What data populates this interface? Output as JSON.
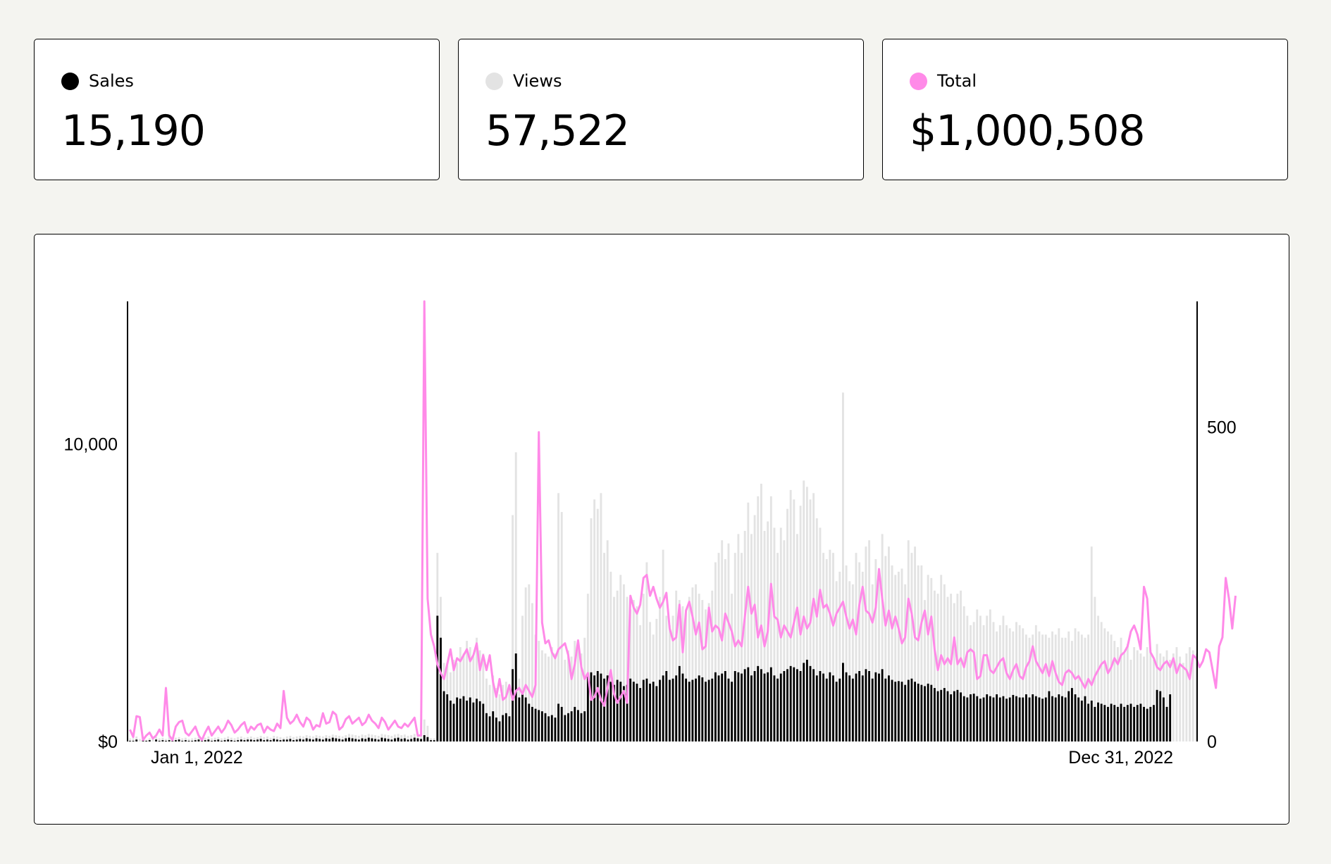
{
  "colors": {
    "sales": "#000000",
    "views": "#e3e3e3",
    "total": "#ff8ae8",
    "background": "#f4f4f0"
  },
  "cards": [
    {
      "label": "Sales",
      "value": "15,190",
      "dot_color": "#000000"
    },
    {
      "label": "Views",
      "value": "57,522",
      "dot_color": "#e3e3e3"
    },
    {
      "label": "Total",
      "value": "$1,000,508",
      "dot_color": "#ff8ae8"
    }
  ],
  "chart_data": {
    "type": "bar",
    "title": "",
    "x_start_label": "Jan 1, 2022",
    "x_end_label": "Dec 31, 2022",
    "left_axis": {
      "ticks": [
        0,
        10000
      ],
      "tick_labels": [
        "$0",
        "10,000"
      ],
      "ylim": [
        0,
        14800
      ]
    },
    "right_axis": {
      "ticks": [
        0,
        500
      ],
      "tick_labels": [
        "0",
        "500"
      ],
      "ylim": [
        0,
        700
      ]
    },
    "series": [
      {
        "name": "Views",
        "kind": "bar",
        "axis": "right",
        "values": [
          5,
          5,
          8,
          4,
          6,
          3,
          5,
          4,
          7,
          5,
          6,
          4,
          8,
          5,
          6,
          7,
          5,
          6,
          4,
          5,
          6,
          7,
          5,
          6,
          8,
          5,
          6,
          7,
          5,
          6,
          8,
          6,
          5,
          7,
          8,
          6,
          7,
          8,
          6,
          7,
          9,
          7,
          8,
          6,
          9,
          8,
          7,
          6,
          8,
          9,
          7,
          8,
          9,
          8,
          10,
          9,
          8,
          10,
          9,
          8,
          10,
          9,
          11,
          10,
          9,
          8,
          10,
          12,
          11,
          10,
          9,
          11,
          10,
          12,
          11,
          10,
          9,
          12,
          11,
          10,
          9,
          11,
          12,
          10,
          11,
          9,
          10,
          12,
          11,
          10,
          35,
          25,
          5,
          5,
          300,
          230,
          125,
          125,
          110,
          130,
          125,
          150,
          140,
          160,
          150,
          135,
          165,
          145,
          140,
          100,
          90,
          105,
          85,
          75,
          90,
          95,
          90,
          360,
          460,
          100,
          200,
          245,
          250,
          220,
          170,
          160,
          145,
          140,
          135,
          150,
          140,
          395,
          365,
          130,
          145,
          135,
          160,
          155,
          140,
          165,
          235,
          355,
          385,
          370,
          395,
          300,
          320,
          270,
          230,
          240,
          265,
          250,
          230,
          210,
          225,
          215,
          185,
          235,
          285,
          190,
          170,
          195,
          230,
          305,
          200,
          185,
          200,
          240,
          225,
          215,
          210,
          230,
          245,
          250,
          235,
          225,
          210,
          220,
          240,
          285,
          300,
          320,
          290,
          315,
          235,
          300,
          330,
          300,
          335,
          380,
          330,
          360,
          390,
          410,
          335,
          350,
          390,
          340,
          300,
          340,
          320,
          370,
          400,
          385,
          330,
          375,
          415,
          405,
          385,
          395,
          355,
          340,
          300,
          290,
          305,
          300,
          255,
          270,
          555,
          280,
          255,
          250,
          300,
          285,
          270,
          310,
          320,
          250,
          290,
          270,
          330,
          295,
          310,
          280,
          265,
          270,
          275,
          250,
          320,
          300,
          310,
          280,
          280,
          225,
          265,
          260,
          240,
          235,
          265,
          250,
          230,
          235,
          220,
          235,
          240,
          215,
          200,
          185,
          190,
          210,
          200,
          185,
          200,
          210,
          190,
          175,
          185,
          200,
          185,
          180,
          175,
          190,
          185,
          180,
          170,
          165,
          170,
          185,
          175,
          170,
          170,
          165,
          175,
          170,
          180,
          165,
          165,
          175,
          160,
          180,
          175,
          170,
          165,
          170,
          310,
          230,
          200,
          190,
          180,
          175,
          170,
          160,
          150,
          165,
          140,
          155,
          130,
          150,
          145,
          140,
          135,
          150,
          145,
          130,
          155,
          140,
          135,
          145,
          130,
          140,
          150,
          135,
          125,
          140,
          150,
          145,
          140
        ]
      },
      {
        "name": "Sales",
        "kind": "bar",
        "axis": "right",
        "values": [
          1,
          1,
          3,
          0,
          2,
          1,
          2,
          0,
          3,
          1,
          2,
          1,
          2,
          1,
          2,
          3,
          1,
          2,
          1,
          1,
          2,
          3,
          1,
          2,
          3,
          1,
          2,
          3,
          1,
          2,
          3,
          2,
          1,
          2,
          3,
          2,
          3,
          3,
          2,
          3,
          4,
          2,
          3,
          2,
          4,
          3,
          2,
          3,
          3,
          4,
          2,
          3,
          4,
          3,
          5,
          4,
          3,
          5,
          4,
          3,
          5,
          4,
          6,
          5,
          4,
          3,
          5,
          6,
          5,
          4,
          3,
          5,
          4,
          6,
          5,
          4,
          3,
          6,
          5,
          4,
          3,
          5,
          6,
          4,
          5,
          3,
          4,
          6,
          5,
          4,
          10,
          7,
          2,
          2,
          200,
          165,
          80,
          75,
          65,
          60,
          70,
          68,
          72,
          65,
          70,
          62,
          68,
          64,
          60,
          45,
          40,
          48,
          38,
          32,
          42,
          45,
          40,
          115,
          140,
          70,
          75,
          70,
          60,
          55,
          52,
          50,
          48,
          45,
          40,
          42,
          38,
          60,
          55,
          42,
          45,
          48,
          55,
          50,
          45,
          48,
          105,
          110,
          105,
          112,
          108,
          100,
          105,
          95,
          90,
          98,
          95,
          88,
          90,
          100,
          95,
          92,
          85,
          98,
          100,
          92,
          95,
          88,
          98,
          105,
          112,
          98,
          100,
          105,
          120,
          108,
          100,
          95,
          98,
          100,
          105,
          102,
          95,
          98,
          100,
          110,
          105,
          108,
          112,
          100,
          95,
          112,
          110,
          108,
          115,
          118,
          105,
          112,
          120,
          115,
          108,
          110,
          118,
          105,
          100,
          108,
          112,
          115,
          120,
          118,
          115,
          112,
          125,
          130,
          120,
          115,
          105,
          112,
          108,
          100,
          110,
          105,
          95,
          100,
          125,
          110,
          105,
          100,
          108,
          112,
          105,
          115,
          112,
          100,
          110,
          108,
          115,
          100,
          105,
          98,
          95,
          96,
          95,
          90,
          98,
          100,
          95,
          92,
          90,
          88,
          92,
          90,
          85,
          80,
          82,
          85,
          80,
          75,
          80,
          82,
          78,
          72,
          70,
          75,
          76,
          72,
          68,
          70,
          75,
          72,
          70,
          75,
          70,
          72,
          68,
          70,
          74,
          72,
          70,
          70,
          75,
          70,
          75,
          72,
          70,
          68,
          70,
          80,
          72,
          70,
          75,
          72,
          70,
          80,
          85,
          75,
          70,
          65,
          72,
          60,
          65,
          55,
          62,
          60,
          58,
          55,
          60,
          58,
          55,
          60,
          55,
          58,
          60,
          55,
          58,
          60,
          55,
          52,
          55,
          58,
          82,
          80,
          70,
          55,
          75
        ]
      },
      {
        "name": "Total",
        "kind": "line",
        "axis": "left",
        "values": [
          400,
          150,
          850,
          820,
          50,
          200,
          300,
          100,
          200,
          400,
          200,
          1800,
          200,
          50,
          500,
          650,
          700,
          300,
          200,
          350,
          500,
          200,
          50,
          300,
          500,
          200,
          350,
          500,
          300,
          450,
          700,
          550,
          300,
          400,
          550,
          650,
          300,
          500,
          400,
          550,
          600,
          300,
          500,
          400,
          350,
          600,
          450,
          1700,
          800,
          600,
          700,
          900,
          650,
          500,
          800,
          700,
          400,
          550,
          500,
          950,
          600,
          650,
          1000,
          900,
          400,
          500,
          750,
          850,
          600,
          700,
          800,
          550,
          650,
          900,
          700,
          600,
          450,
          800,
          650,
          400,
          550,
          700,
          500,
          450,
          600,
          500,
          650,
          800,
          200,
          200,
          14800,
          4800,
          3600,
          3200,
          2600,
          2300,
          2100,
          2600,
          3100,
          2400,
          2800,
          2700,
          2900,
          3100,
          2700,
          2900,
          3300,
          2400,
          2900,
          2400,
          2900,
          2000,
          1500,
          2100,
          1400,
          1500,
          1900,
          1400,
          1700,
          1800,
          1600,
          1900,
          1700,
          1500,
          1900,
          10400,
          4000,
          3300,
          3400,
          3000,
          2800,
          3100,
          3200,
          3300,
          2900,
          2100,
          2600,
          3400,
          2500,
          2100,
          2300,
          1400,
          1500,
          1800,
          1400,
          1200,
          1800,
          2400,
          1600,
          1300,
          1500,
          1700,
          1300,
          4900,
          4500,
          4300,
          4600,
          5500,
          5600,
          4900,
          5200,
          4800,
          4500,
          4700,
          5000,
          3800,
          3400,
          3500,
          4600,
          3000,
          4400,
          4700,
          4200,
          3600,
          4000,
          3100,
          3200,
          4500,
          3700,
          3900,
          3800,
          3400,
          4300,
          4000,
          3700,
          3200,
          3400,
          3200,
          4200,
          5200,
          4300,
          4600,
          3500,
          3900,
          3200,
          3700,
          5300,
          4200,
          4100,
          3500,
          3900,
          3700,
          3500,
          4000,
          4500,
          3600,
          4200,
          3800,
          4000,
          4800,
          4200,
          5100,
          4500,
          4600,
          4300,
          3900,
          4300,
          4500,
          4700,
          4200,
          3800,
          4100,
          3600,
          4600,
          5200,
          4400,
          4300,
          4000,
          4500,
          5800,
          4800,
          3900,
          4400,
          3800,
          4200,
          3800,
          3300,
          3500,
          4800,
          4300,
          3500,
          3400,
          4000,
          4400,
          3600,
          4200,
          3100,
          2400,
          2900,
          2600,
          2800,
          2600,
          3500,
          2600,
          2800,
          2500,
          3000,
          3100,
          3000,
          2100,
          2200,
          2900,
          2900,
          2400,
          2300,
          2500,
          2700,
          2800,
          2300,
          2100,
          2400,
          2600,
          2200,
          2100,
          2500,
          2700,
          3200,
          2700,
          2500,
          2300,
          2600,
          2200,
          2700,
          2300,
          2000,
          1900,
          2300,
          2400,
          2300,
          2100,
          2200,
          2000,
          1800,
          2100,
          1900,
          2200,
          2400,
          2600,
          2700,
          2300,
          2500,
          2800,
          2600,
          2900,
          3000,
          3200,
          3700,
          3900,
          3600,
          3100,
          5200,
          4800,
          3000,
          2800,
          2500,
          2400,
          2600,
          2700,
          2500,
          2800,
          2300,
          2600,
          2500,
          2400,
          2100,
          2900,
          2800,
          2500,
          2700,
          3100,
          3000,
          2400,
          1800,
          3200,
          3500,
          5500,
          4800,
          3800,
          4900
        ]
      }
    ]
  }
}
